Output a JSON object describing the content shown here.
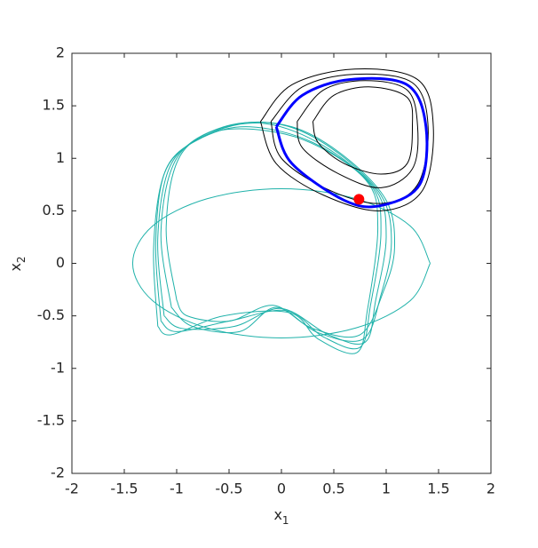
{
  "chart_data": {
    "type": "line",
    "xlabel": "x",
    "xlabel_sub": "1",
    "ylabel": "x",
    "ylabel_sub": "2",
    "xlim": [
      -2,
      2
    ],
    "ylim": [
      -2,
      2
    ],
    "xticks": [
      -2,
      -1.5,
      -1,
      -0.5,
      0,
      0.5,
      1,
      1.5,
      2
    ],
    "yticks": [
      -2,
      -1.5,
      -1,
      -0.5,
      0,
      0.5,
      1,
      1.5,
      2
    ],
    "grid": false,
    "series": [
      {
        "color": "#20b2aa",
        "width": 1,
        "x": [
          1.42,
          1.23,
          0.71,
          0,
          -0.71,
          -1.23,
          -1.42,
          -1.23,
          -0.71,
          0,
          0.71,
          1.23,
          1.42
        ],
        "values": [
          0,
          0.355,
          0.615,
          0.71,
          0.615,
          0.355,
          0,
          -0.355,
          -0.615,
          -0.71,
          -0.615,
          -0.355,
          0
        ]
      },
      {
        "color": "#20b2aa",
        "width": 1,
        "x": [
          -1.15,
          -1.2,
          -1.1,
          -0.75,
          -0.3,
          0.3,
          0.85,
          0.95,
          0.85,
          0.75,
          0.4,
          0.05,
          -0.5,
          -1.0,
          -1.15
        ],
        "values": [
          -0.55,
          0.2,
          0.9,
          1.2,
          1.3,
          1.15,
          0.75,
          0.3,
          -0.4,
          -0.8,
          -0.7,
          -0.45,
          -0.55,
          -0.65,
          -0.55
        ]
      },
      {
        "color": "#20b2aa",
        "width": 1,
        "x": [
          -1.12,
          -1.18,
          -1.05,
          -0.65,
          -0.15,
          0.4,
          0.9,
          1.0,
          0.9,
          0.8,
          0.45,
          0.0,
          -0.45,
          -0.95,
          -1.12
        ],
        "values": [
          -0.5,
          0.25,
          0.95,
          1.25,
          1.33,
          1.12,
          0.7,
          0.25,
          -0.35,
          -0.75,
          -0.68,
          -0.43,
          -0.6,
          -0.62,
          -0.5
        ]
      },
      {
        "color": "#20b2aa",
        "width": 1,
        "x": [
          -1.05,
          -1.15,
          -1.0,
          -0.55,
          0.0,
          0.5,
          0.95,
          1.05,
          0.95,
          0.78,
          0.35,
          -0.05,
          -0.4,
          -0.85,
          -1.05
        ],
        "values": [
          -0.42,
          0.3,
          1.0,
          1.3,
          1.32,
          1.08,
          0.65,
          0.2,
          -0.3,
          -0.72,
          -0.66,
          -0.42,
          -0.65,
          -0.6,
          -0.42
        ]
      },
      {
        "color": "#20b2aa",
        "width": 1,
        "x": [
          -1.0,
          -1.1,
          -0.95,
          -0.45,
          0.1,
          0.6,
          1.0,
          1.08,
          0.98,
          0.75,
          0.3,
          -0.08,
          -0.5,
          -0.9,
          -1.0
        ],
        "values": [
          -0.35,
          0.35,
          1.05,
          1.32,
          1.3,
          1.02,
          0.6,
          0.15,
          -0.25,
          -0.68,
          -0.62,
          -0.4,
          -0.55,
          -0.5,
          -0.35
        ]
      },
      {
        "color": "#20b2aa",
        "width": 1,
        "x": [
          -1.18,
          -1.22,
          -1.12,
          -0.85,
          -0.45,
          0.2,
          0.8,
          0.92,
          0.82,
          0.72,
          0.35,
          0.08,
          -0.55,
          -1.05,
          -1.18
        ],
        "values": [
          -0.6,
          0.15,
          0.85,
          1.15,
          1.28,
          1.18,
          0.8,
          0.35,
          -0.45,
          -0.85,
          -0.72,
          -0.47,
          -0.5,
          -0.68,
          -0.6
        ]
      },
      {
        "color": "#000000",
        "width": 1,
        "x": [
          -0.2,
          0.1,
          0.7,
          1.3,
          1.45,
          1.35,
          0.95,
          0.4,
          -0.05,
          -0.2
        ],
        "values": [
          1.35,
          1.7,
          1.85,
          1.75,
          1.3,
          0.7,
          0.5,
          0.65,
          0.95,
          1.35
        ]
      },
      {
        "color": "#000000",
        "width": 1,
        "x": [
          -0.1,
          0.2,
          0.7,
          1.25,
          1.4,
          1.3,
          0.95,
          0.45,
          0.0,
          -0.1
        ],
        "values": [
          1.35,
          1.68,
          1.8,
          1.72,
          1.3,
          0.75,
          0.57,
          0.7,
          1.0,
          1.35
        ]
      },
      {
        "color": "#000000",
        "width": 1,
        "x": [
          0.15,
          0.4,
          0.8,
          1.2,
          1.3,
          1.25,
          0.95,
          0.55,
          0.2,
          0.15
        ],
        "values": [
          1.35,
          1.65,
          1.74,
          1.65,
          1.3,
          0.9,
          0.72,
          0.85,
          1.1,
          1.35
        ]
      },
      {
        "color": "#000000",
        "width": 1,
        "x": [
          0.3,
          0.5,
          0.85,
          1.2,
          1.25,
          1.2,
          0.95,
          0.6,
          0.35,
          0.3
        ],
        "values": [
          1.35,
          1.6,
          1.68,
          1.58,
          1.3,
          0.95,
          0.85,
          0.95,
          1.15,
          1.35
        ]
      },
      {
        "color": "#0000ff",
        "width": 3,
        "x": [
          -0.05,
          0.2,
          0.65,
          1.2,
          1.38,
          1.32,
          0.95,
          0.6,
          0.1,
          -0.05
        ],
        "values": [
          1.3,
          1.6,
          1.75,
          1.7,
          1.3,
          0.75,
          0.55,
          0.6,
          0.95,
          1.3
        ]
      }
    ],
    "point": {
      "x": 0.74,
      "y": 0.61,
      "color": "#ff0000"
    }
  }
}
